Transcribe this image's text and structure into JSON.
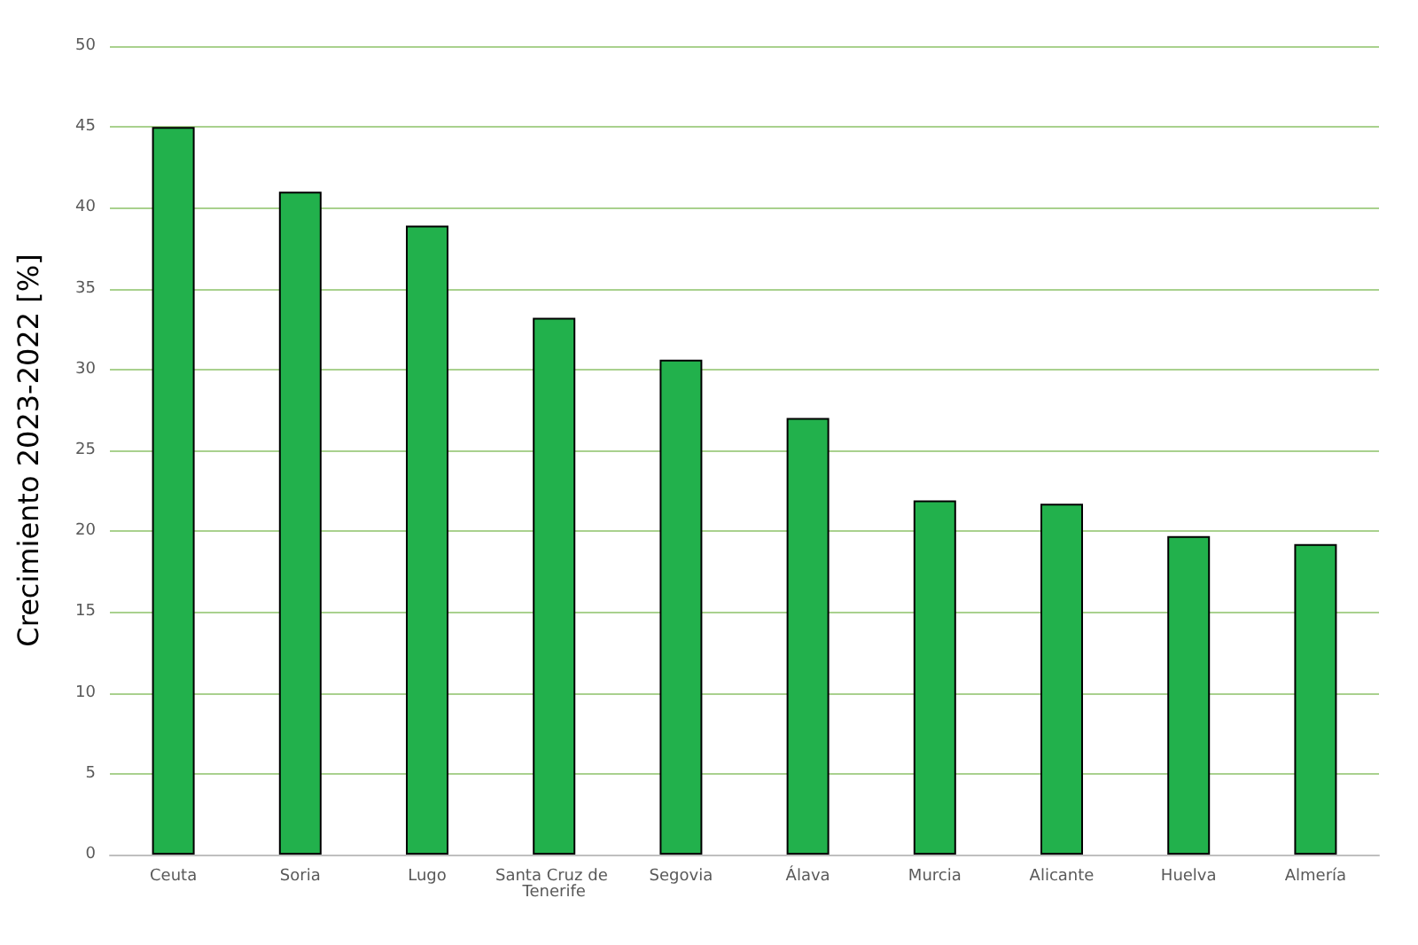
{
  "chart_data": {
    "type": "bar",
    "ylabel": "Crecimiento 2023-2022 [%]",
    "categories": [
      "Ceuta",
      "Soria",
      "Lugo",
      "Santa Cruz de Tenerife",
      "Segovia",
      "Álava",
      "Murcia",
      "Alicante",
      "Huelva",
      "Almería"
    ],
    "values": [
      45,
      41,
      38.9,
      33.2,
      30.6,
      27,
      21.9,
      21.7,
      19.7,
      19.2
    ],
    "color": "#22b14c",
    "ylim": [
      0,
      50
    ],
    "yticks": [
      0,
      5,
      10,
      15,
      20,
      25,
      30,
      35,
      40,
      45,
      50
    ],
    "grid": "y"
  }
}
